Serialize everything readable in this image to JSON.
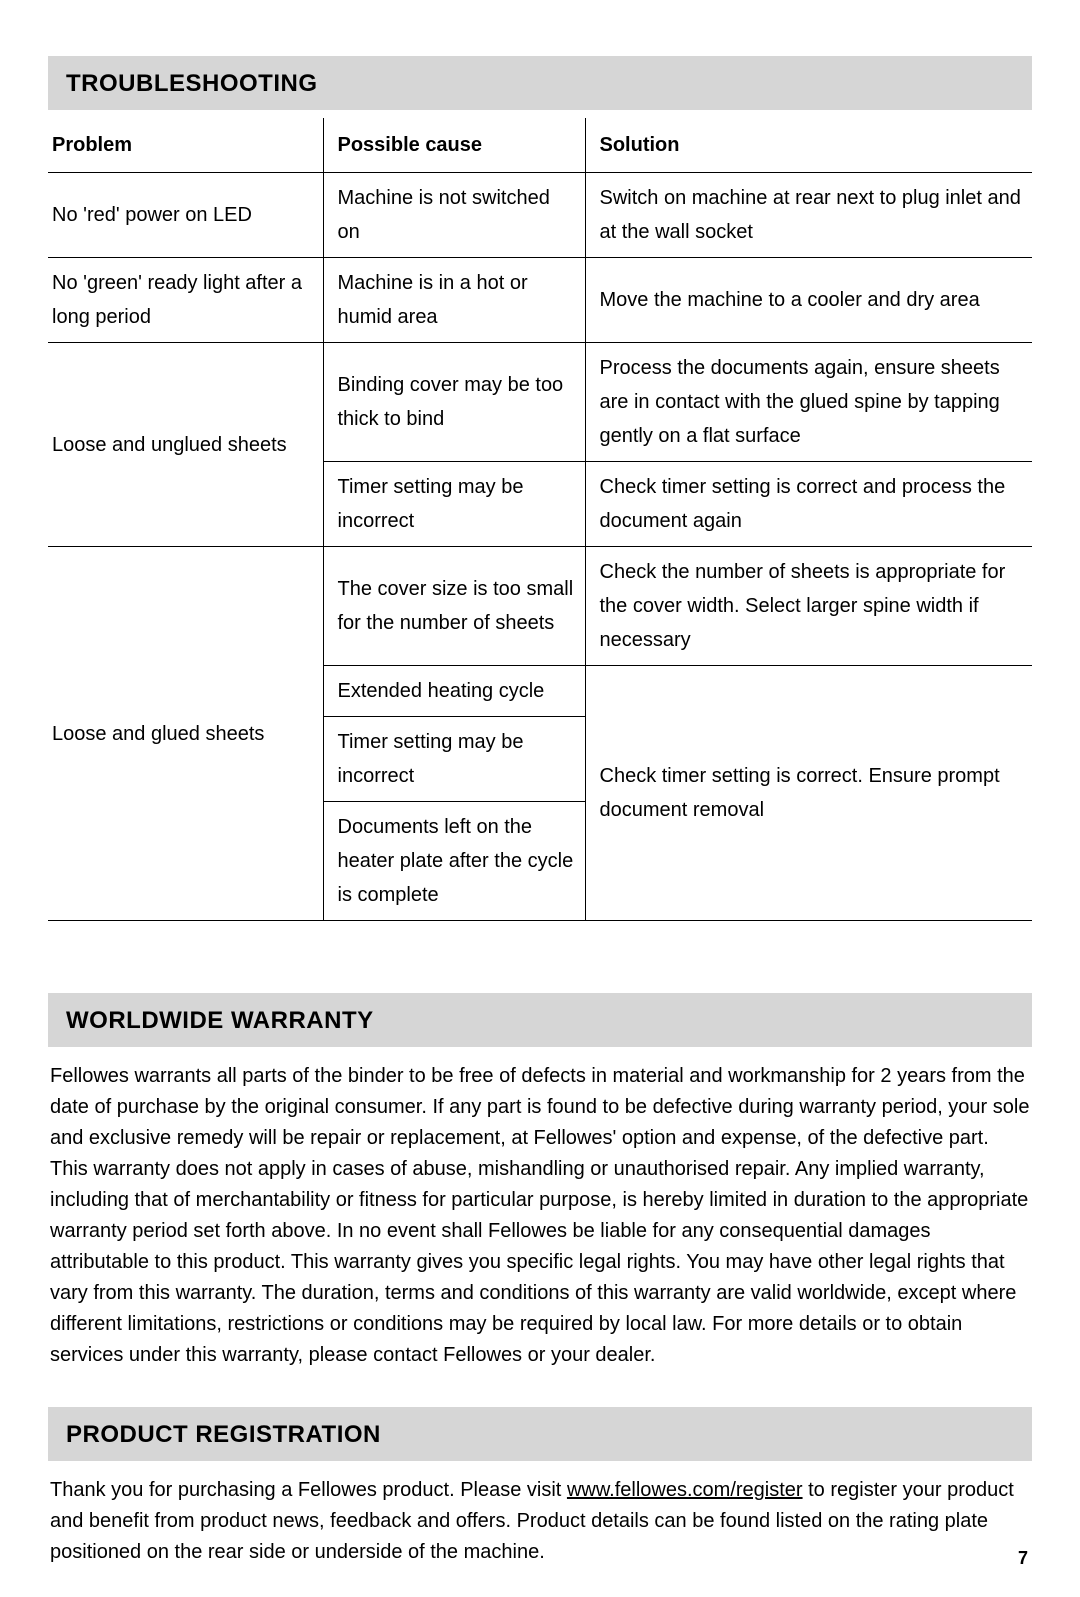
{
  "troubleshooting": {
    "heading": "TROUBLESHOOTING",
    "columns": {
      "problem": "Problem",
      "cause": "Possible cause",
      "solution": "Solution"
    },
    "rows": {
      "r1": {
        "problem": "No 'red' power on LED",
        "cause": "Machine is not switched on",
        "solution": "Switch on machine at rear next to plug inlet and at the wall socket"
      },
      "r2": {
        "problem": "No 'green' ready light after a long period",
        "cause": "Machine is in a hot or humid area",
        "solution": "Move the machine to a cooler and dry area"
      },
      "r3": {
        "problem": "Loose and unglued sheets",
        "cause_a": "Binding cover may be too thick to bind",
        "solution_a": "Process the documents again, ensure sheets are in contact with the glued spine by tapping gently on a flat surface",
        "cause_b": "Timer setting may be incorrect",
        "solution_b": "Check timer setting is correct and process the document again"
      },
      "r4": {
        "problem": "Loose and glued sheets",
        "cause_a": "The cover size is too small for the number of sheets",
        "solution_a": "Check the number of sheets is appropriate for the cover width. Select larger spine width if necessary",
        "cause_b": "Extended heating cycle",
        "cause_c": "Timer setting may be incorrect",
        "cause_d": "Documents left on the heater plate after the cycle is complete",
        "solution_bcd": "Check timer setting is correct. Ensure prompt document removal"
      }
    }
  },
  "warranty": {
    "heading": "WORLDWIDE WARRANTY",
    "body": "Fellowes warrants all parts of the binder to be free of defects in material and workmanship for 2 years from the date of purchase by the original consumer. If any part is found to be defective during warranty period, your sole and exclusive remedy will be repair or replacement, at Fellowes' option and expense, of the defective part. This warranty does not apply in cases of abuse, mishandling or unauthorised repair. Any implied warranty, including that of merchantability or fitness for particular purpose, is hereby limited in duration to the appropriate warranty period set forth above. In no event shall Fellowes be liable for any consequential damages attributable to this product. This warranty gives you specific legal rights. You may have other legal rights that vary from this warranty. The duration, terms and conditions of this warranty are valid worldwide, except where different limitations, restrictions or conditions may be required by local law. For more details or to obtain services under this warranty, please contact Fellowes or your dealer."
  },
  "registration": {
    "heading": "PRODUCT REGISTRATION",
    "before_link": "Thank you for purchasing a Fellowes product. Please visit ",
    "link_text": "www.fellowes.com/register",
    "after_link": " to register your product and benefit from product news, feedback and offers. Product details can be found listed on the rating plate positioned on the rear side or underside of the machine."
  },
  "page_number": "7"
}
